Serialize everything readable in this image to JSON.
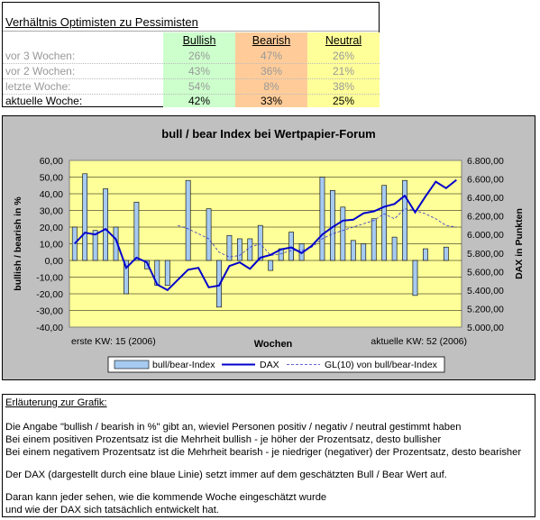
{
  "table": {
    "title": "Verhältnis Optimisten zu Pessimisten",
    "headers": [
      "Bullish",
      "Bearish",
      "Neutral"
    ],
    "rows": [
      {
        "label": "vor 3 Wochen:",
        "values": [
          "26%",
          "47%",
          "26%"
        ]
      },
      {
        "label": "vor 2 Wochen:",
        "values": [
          "43%",
          "36%",
          "21%"
        ]
      },
      {
        "label": "letzte Woche:",
        "values": [
          "54%",
          "8%",
          "38%"
        ]
      },
      {
        "label": "aktuelle Woche:",
        "values": [
          "42%",
          "33%",
          "25%"
        ]
      }
    ],
    "colors": {
      "bullish": "#ccffcc",
      "bearish": "#ffcc99",
      "neutral": "#ffff99",
      "dim_text": "#999999"
    }
  },
  "chart_data": {
    "type": "bar",
    "title": "bull / bear Index bei Wertpapier-Forum",
    "xlabel": "Wochen",
    "ylabel": "bullish / bearish in %",
    "y2label": "DAX in Punkten",
    "ylim": [
      -40,
      60
    ],
    "y2lim": [
      5000,
      6800
    ],
    "yticks": [
      "60,00",
      "50,00",
      "40,00",
      "30,00",
      "20,00",
      "10,00",
      "0,00",
      "-10,00",
      "-20,00",
      "-30,00",
      "-40,00"
    ],
    "y2ticks": [
      "6.800,00",
      "6.600,00",
      "6.400,00",
      "6.200,00",
      "6.000,00",
      "5.800,00",
      "5.600,00",
      "5.400,00",
      "5.200,00",
      "5.000,00"
    ],
    "x_start_label": "erste KW: 15 (2006)",
    "x_end_label": "aktuelle KW: 52 (2006)",
    "grid": true,
    "legend_position": "bottom",
    "weeks": [
      15,
      16,
      17,
      18,
      19,
      20,
      21,
      22,
      23,
      24,
      25,
      26,
      27,
      28,
      29,
      30,
      31,
      32,
      33,
      34,
      35,
      36,
      37,
      38,
      39,
      40,
      41,
      42,
      43,
      44,
      45,
      46,
      47,
      48,
      49,
      50,
      51,
      52
    ],
    "series": [
      {
        "name": "bull/bear-Index",
        "kind": "bar",
        "color": "#a6caf0",
        "values": [
          20,
          52,
          18,
          43,
          20,
          -20,
          35,
          -5,
          -15,
          -15,
          0,
          48,
          0,
          31,
          -28,
          15,
          13,
          13,
          21,
          -6,
          7,
          17,
          10,
          0,
          50,
          42,
          32,
          12,
          10,
          25,
          45,
          14,
          48,
          -21,
          7,
          0,
          8,
          0
        ]
      },
      {
        "name": "DAX",
        "kind": "line",
        "color": "#0000cc",
        "values": [
          5900,
          6020,
          6000,
          6060,
          5950,
          5640,
          5750,
          5700,
          5460,
          5400,
          5510,
          5620,
          5640,
          5430,
          5450,
          5660,
          5700,
          5630,
          5750,
          5780,
          5840,
          5860,
          5800,
          5880,
          6000,
          6080,
          6150,
          6160,
          6230,
          6250,
          6300,
          6330,
          6420,
          6240,
          6410,
          6570,
          6500,
          6590
        ]
      },
      {
        "name": "GL(10) von bull/bear-Index",
        "kind": "line",
        "color": "#3333cc",
        "dashed": true,
        "values": [
          null,
          null,
          null,
          null,
          null,
          null,
          null,
          null,
          null,
          null,
          21,
          19,
          16,
          13,
          5,
          2,
          3,
          8,
          10,
          3,
          4,
          6,
          6,
          8,
          13,
          16,
          18,
          20,
          22,
          24,
          28,
          25,
          31,
          30,
          28,
          25,
          21,
          20
        ]
      }
    ]
  },
  "explanation": {
    "title": "Erläuterung zur Grafik:",
    "lines": [
      "Die Angabe \"bullish / bearish in %\" gibt an, wieviel Personen positiv / negativ / neutral gestimmt haben",
      "Bei einem positiven Prozentsatz ist die Mehrheit bullish - je höher der Prozentsatz, desto bullisher",
      "Bei einem negativem Prozentsatz ist die Mehrheit bearish - je niedriger (negativer) der Prozentsatz, desto bearisher",
      "Der DAX (dargestellt durch eine blaue Linie) setzt immer auf dem geschätzten Bull / Bear Wert auf.",
      "Daran kann jeder sehen, wie die kommende Woche eingeschätzt wurde",
      "und wie der DAX sich tatsächlich entwickelt hat."
    ]
  }
}
